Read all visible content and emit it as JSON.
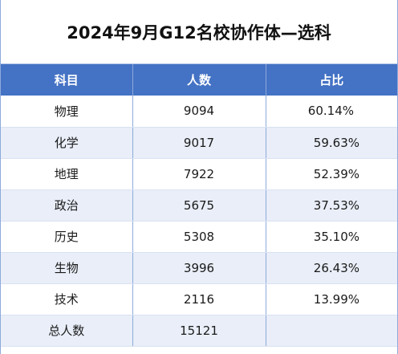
{
  "title": "2024年9月G12名校协作体—选科",
  "headers": {
    "subject": "科目",
    "count": "人数",
    "ratio": "占比"
  },
  "rows": [
    {
      "subject": "物理",
      "count": "9094",
      "ratio": "60.14%"
    },
    {
      "subject": "化学",
      "count": "9017",
      "ratio": "59.63%"
    },
    {
      "subject": "地理",
      "count": "7922",
      "ratio": "52.39%"
    },
    {
      "subject": "政治",
      "count": "5675",
      "ratio": "37.53%"
    },
    {
      "subject": "历史",
      "count": "5308",
      "ratio": "35.10%"
    },
    {
      "subject": "生物",
      "count": "3996",
      "ratio": "26.43%"
    },
    {
      "subject": "技术",
      "count": "2116",
      "ratio": "13.99%"
    }
  ],
  "total": {
    "label": "总人数",
    "count": "15121",
    "ratio": ""
  },
  "colors": {
    "header_bg": "#4472c4",
    "header_text": "#ffffff",
    "stripe": "#e9eef8",
    "border": "#8eaadb"
  }
}
